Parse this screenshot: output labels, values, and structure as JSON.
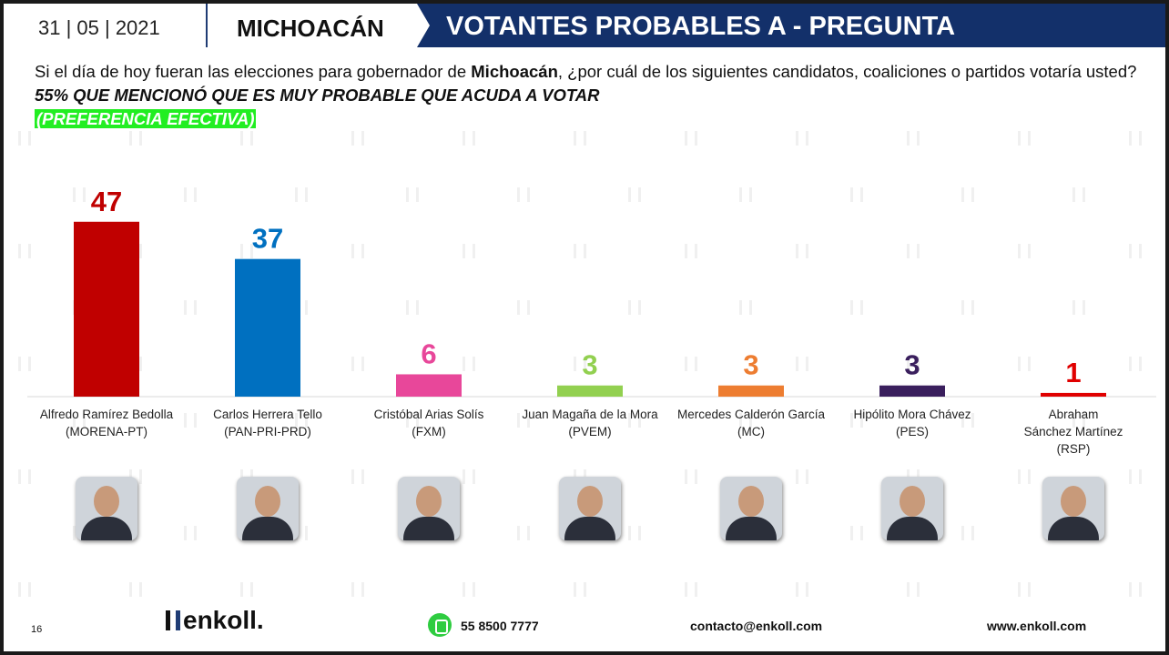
{
  "header": {
    "date": "31 | 05 | 2021",
    "state": "MICHOACÁN",
    "title": "VOTANTES PROBABLES A - PREGUNTA"
  },
  "question": {
    "text": "Si el día de hoy fueran las elecciones para gobernador de ",
    "state_bold": "Michoacán",
    "text2": ", ¿por cuál de los siguientes candidatos, coaliciones o partidos votaría usted? ",
    "note": "55% QUE MENCIONÓ QUE ES MUY PROBABLE QUE ACUDA A VOTAR",
    "highlight": "(PREFERENCIA EFECTIVA)"
  },
  "chart_data": {
    "type": "bar",
    "categories": [
      "Alfredo Ramírez Bedolla (MORENA-PT)",
      "Carlos Herrera Tello (PAN-PRI-PRD)",
      "Cristóbal Arias Solís (FXM)",
      "Juan Magaña de la Mora (PVEM)",
      "Mercedes Calderón García (MC)",
      "Hipólito Mora Chávez (PES)",
      "Abraham Sánchez Martínez (RSP)"
    ],
    "names": [
      "Alfredo Ramírez Bedolla",
      "Carlos Herrera Tello",
      "Cristóbal Arias Solís",
      "Juan Magaña de la Mora",
      "Mercedes Calderón García",
      "Hipólito Mora Chávez",
      "Abraham Sánchez Martínez"
    ],
    "parties": [
      "(MORENA-PT)",
      "(PAN-PRI-PRD)",
      "(FXM)",
      "(PVEM)",
      "(MC)",
      "(PES)",
      "(RSP)"
    ],
    "values": [
      47,
      37,
      6,
      3,
      3,
      3,
      1
    ],
    "colors": [
      "#c00000",
      "#0070c0",
      "#e8479a",
      "#92d050",
      "#ed7d31",
      "#3a1f5d",
      "#e00000"
    ],
    "ylim": [
      0,
      50
    ],
    "title": "",
    "xlabel": "",
    "ylabel": ""
  },
  "footer": {
    "page": "16",
    "logo": "enkoll.",
    "phone": "55 8500 7777",
    "email": "contacto@enkoll.com",
    "web": "www.enkoll.com"
  }
}
